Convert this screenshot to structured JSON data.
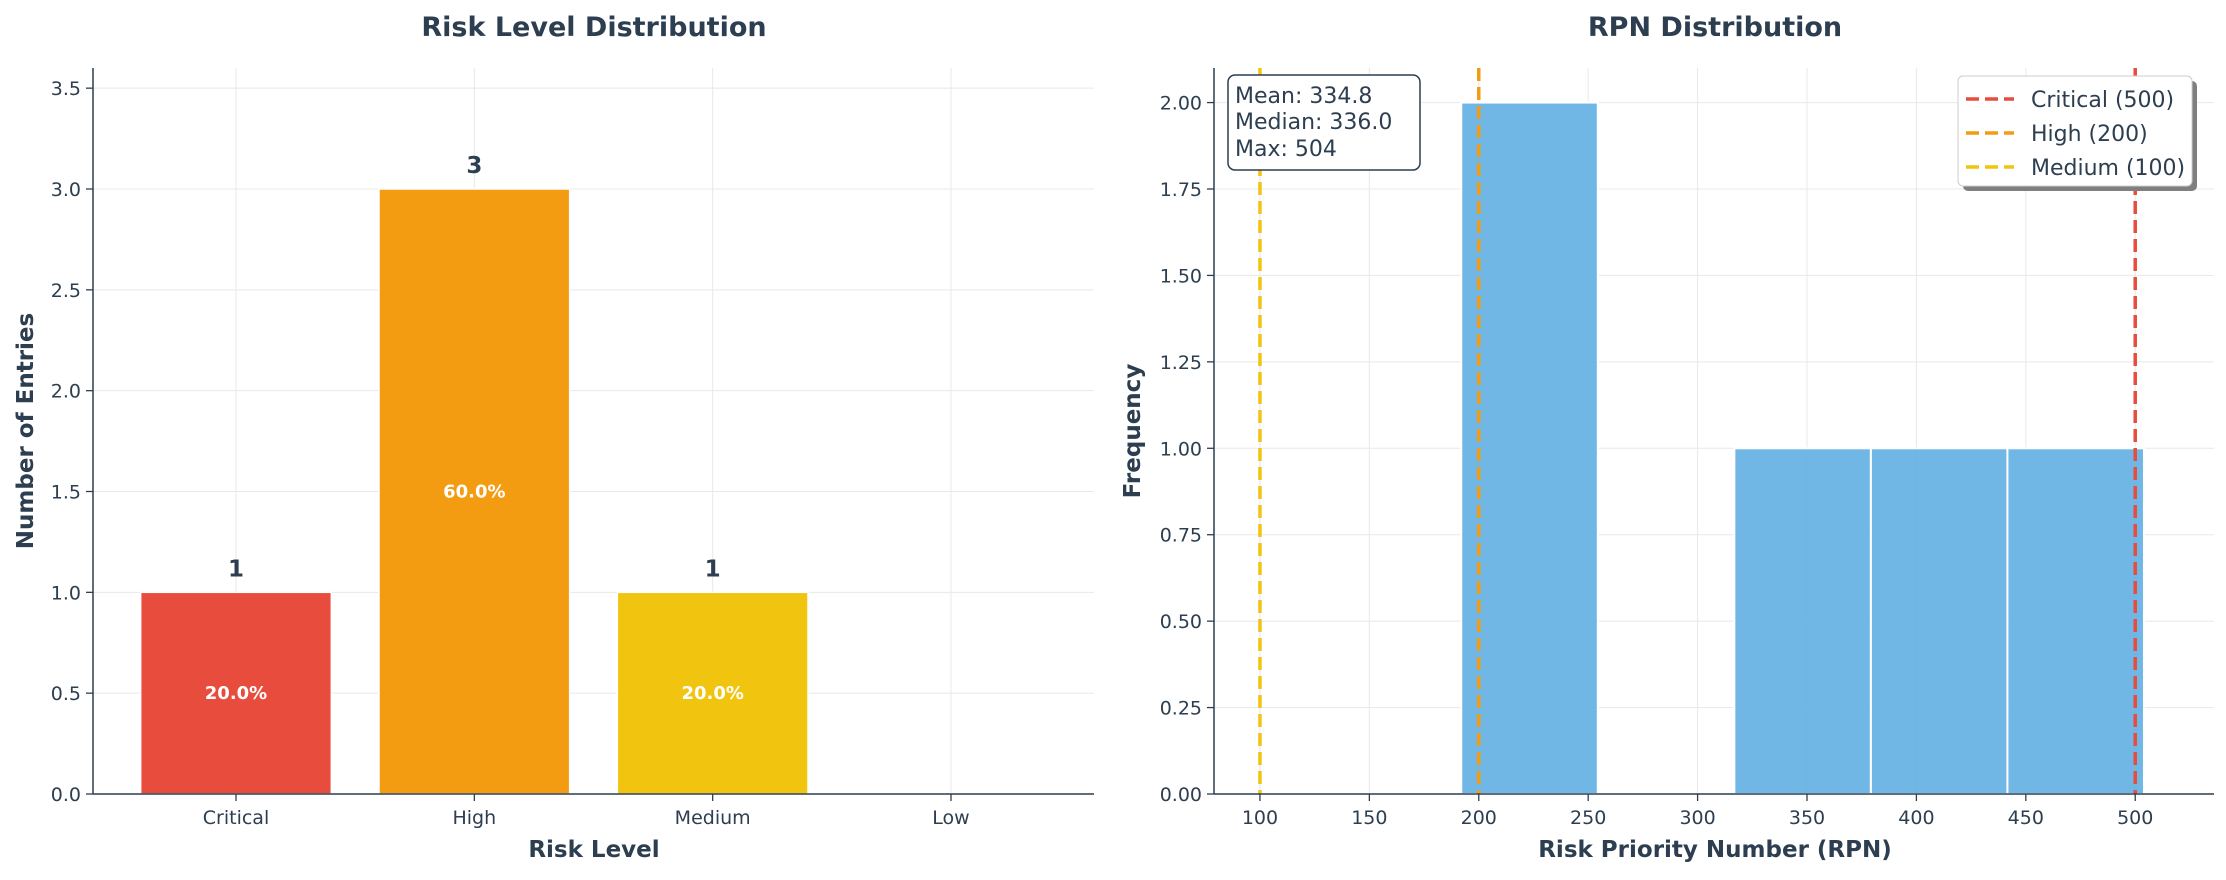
{
  "chart_data": [
    {
      "type": "bar",
      "title": "Risk Level Distribution",
      "xlabel": "Risk Level",
      "ylabel": "Number of Entries",
      "categories": [
        "Critical",
        "High",
        "Medium",
        "Low"
      ],
      "values": [
        1,
        3,
        1,
        0
      ],
      "value_labels": [
        "1",
        "3",
        "1",
        ""
      ],
      "percent_labels": [
        "20.0%",
        "60.0%",
        "20.0%",
        ""
      ],
      "colors": [
        "#e74c3c",
        "#f39c12",
        "#f1c40f",
        "#2ecc71"
      ],
      "ylim": [
        0,
        3.6
      ],
      "yticks": [
        0.0,
        0.5,
        1.0,
        1.5,
        2.0,
        2.5,
        3.0,
        3.5
      ],
      "ytick_labels": [
        "0.0",
        "0.5",
        "1.0",
        "1.5",
        "2.0",
        "2.5",
        "3.0",
        "3.5"
      ],
      "grid": true
    },
    {
      "type": "histogram",
      "title": "RPN Distribution",
      "xlabel": "Risk Priority Number (RPN)",
      "ylabel": "Frequency",
      "bins": [
        {
          "start": 192.0,
          "end": 254.4,
          "count": 2
        },
        {
          "start": 254.4,
          "end": 316.8,
          "count": 0
        },
        {
          "start": 316.8,
          "end": 379.2,
          "count": 1
        },
        {
          "start": 379.2,
          "end": 441.6,
          "count": 1
        },
        {
          "start": 441.6,
          "end": 504.0,
          "count": 1
        }
      ],
      "bar_color": "#5dade2",
      "xlim": [
        79,
        536
      ],
      "ylim": [
        0,
        2.1
      ],
      "xticks": [
        100,
        150,
        200,
        250,
        300,
        350,
        400,
        450,
        500
      ],
      "xtick_labels": [
        "100",
        "150",
        "200",
        "250",
        "300",
        "350",
        "400",
        "450",
        "500"
      ],
      "yticks": [
        0.0,
        0.25,
        0.5,
        0.75,
        1.0,
        1.25,
        1.5,
        1.75,
        2.0
      ],
      "ytick_labels": [
        "0.00",
        "0.25",
        "0.50",
        "0.75",
        "1.00",
        "1.25",
        "1.50",
        "1.75",
        "2.00"
      ],
      "threshold_lines": [
        {
          "name": "Critical (500)",
          "value": 500,
          "color": "#e74c3c"
        },
        {
          "name": "High (200)",
          "value": 200,
          "color": "#f39c12"
        },
        {
          "name": "Medium (100)",
          "value": 100,
          "color": "#f1c40f"
        }
      ],
      "stats": [
        "Mean: 334.8",
        "Median: 336.0",
        "Max: 504"
      ],
      "legend_position": "top-right",
      "grid": true
    }
  ]
}
